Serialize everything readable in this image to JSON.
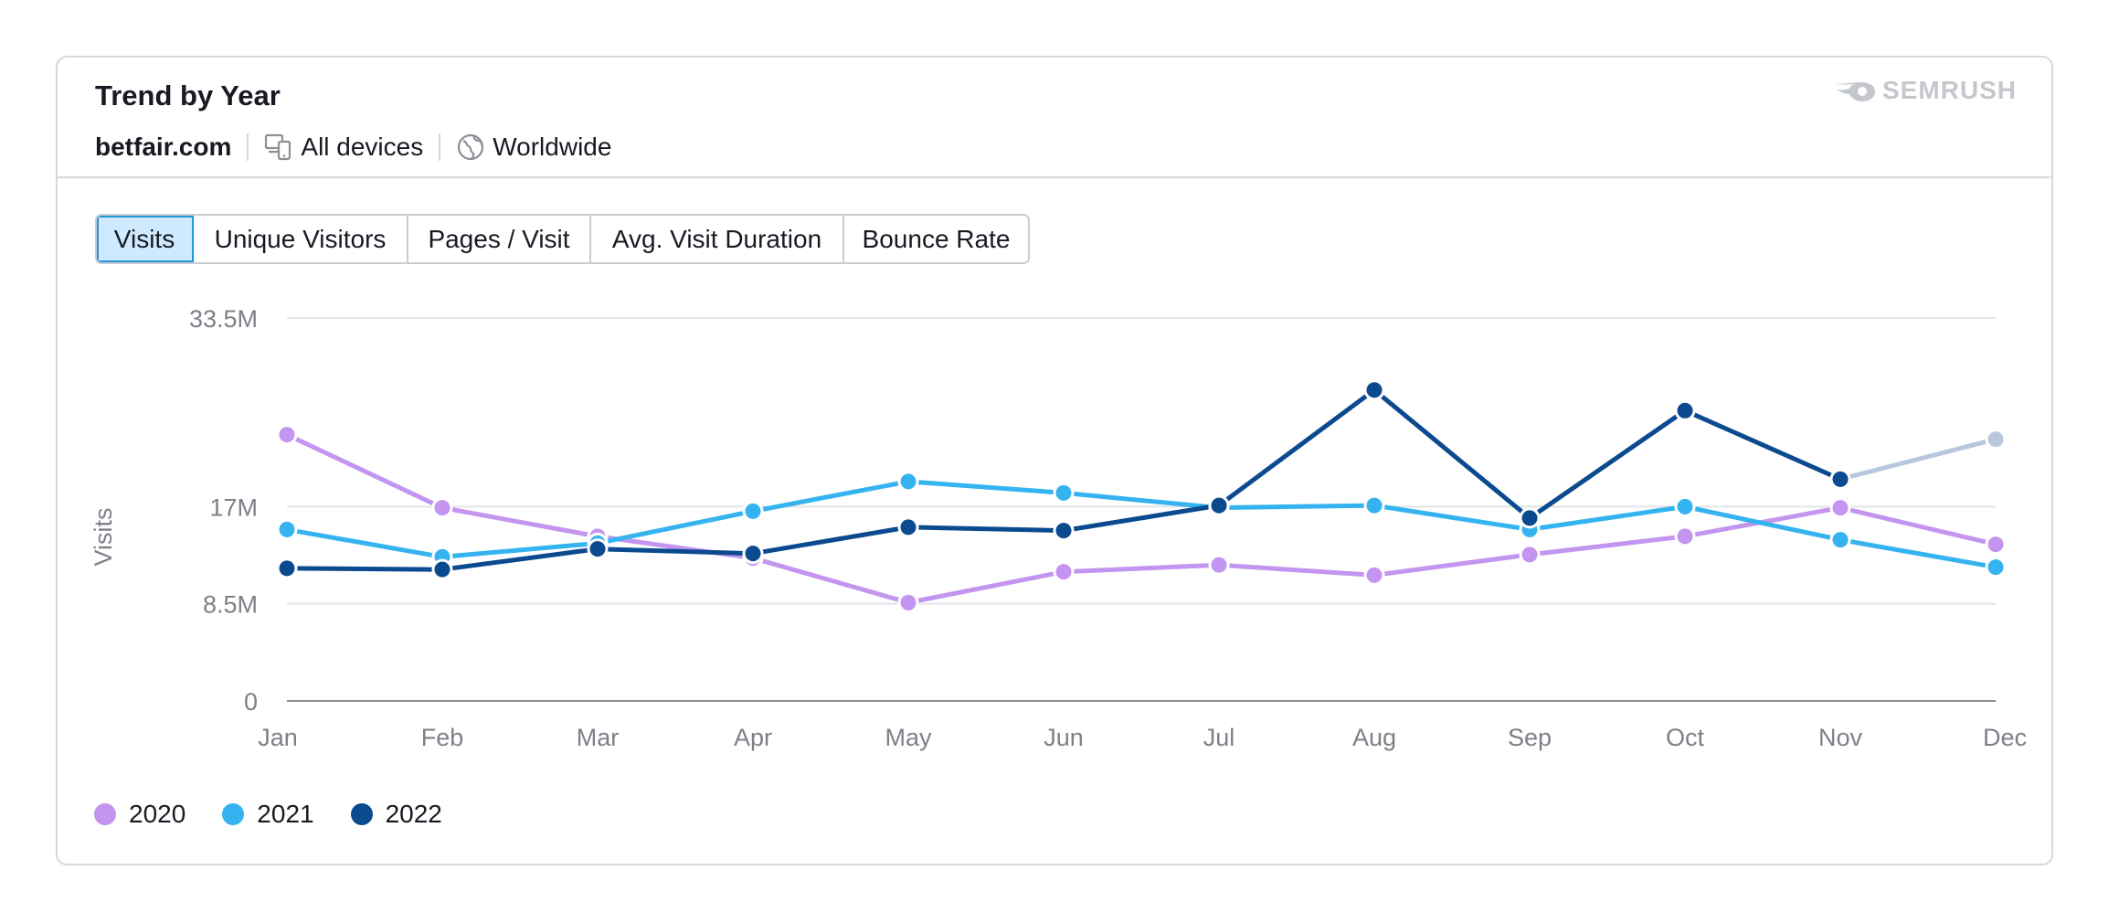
{
  "header": {
    "title": "Trend by Year",
    "domain": "betfair.com",
    "device": "All devices",
    "region": "Worldwide",
    "brand": "SEMRUSH"
  },
  "tabs": [
    {
      "label": "Visits",
      "active": true
    },
    {
      "label": "Unique Visitors",
      "active": false
    },
    {
      "label": "Pages / Visit",
      "active": false
    },
    {
      "label": "Avg. Visit Duration",
      "active": false
    },
    {
      "label": "Bounce Rate",
      "active": false
    }
  ],
  "colors": {
    "2020": "#c395f0",
    "2021": "#35b3f0",
    "2022": "#0b4a8f",
    "2022_forecast": "#b8c8dc",
    "grid": "#e2e4e7",
    "axis": "#7d8088",
    "tab_active_bg": "#cfeaff",
    "tab_active_border": "#2196d9"
  },
  "chart_data": {
    "type": "line",
    "ylabel": "Visits",
    "yticks": [
      {
        "value": 0,
        "label": "0"
      },
      {
        "value": 8.5,
        "label": "8.5M"
      },
      {
        "value": 17,
        "label": "17M"
      },
      {
        "value": 33.5,
        "label": "33.5M"
      }
    ],
    "ylim": [
      0,
      33.5
    ],
    "categories": [
      "Jan",
      "Feb",
      "Mar",
      "Apr",
      "May",
      "Jun",
      "Jul",
      "Aug",
      "Sep",
      "Oct",
      "Nov",
      "Dec"
    ],
    "series": [
      {
        "name": "2020",
        "values": [
          23.3,
          16.9,
          14.4,
          12.5,
          8.6,
          11.3,
          11.9,
          11.0,
          12.8,
          14.4,
          16.9,
          13.7
        ]
      },
      {
        "name": "2021",
        "values": [
          15.0,
          12.6,
          13.8,
          16.6,
          19.2,
          18.2,
          16.9,
          17.1,
          15.0,
          17.0,
          14.1,
          11.7
        ]
      },
      {
        "name": "2022",
        "values": [
          11.6,
          11.5,
          13.3,
          12.9,
          15.2,
          14.9,
          17.1,
          27.2,
          16.0,
          25.4,
          19.4,
          null
        ]
      }
    ],
    "forecast": {
      "series": "2022",
      "from": "Nov",
      "to": "Dec",
      "values": [
        19.4,
        22.9
      ]
    },
    "grid": true,
    "legend_position": "bottom-left"
  }
}
